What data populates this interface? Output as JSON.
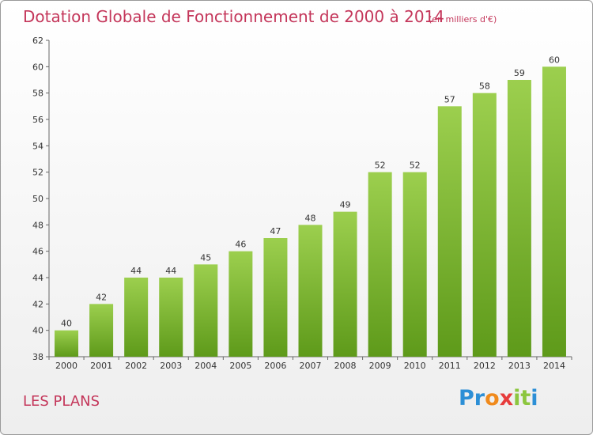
{
  "title": "Dotation Globale de Fonctionnement de 2000 à 2014",
  "subtitle": "(en milliers d'€)",
  "commune": "LES PLANS",
  "logo": {
    "letters": [
      "P",
      "r",
      "o",
      "x",
      "i",
      "t",
      "i"
    ],
    "colors": [
      "#2c8fd6",
      "#2c8fd6",
      "#f08a1c",
      "#e73c3c",
      "#8cc63f",
      "#8cc63f",
      "#2c8fd6"
    ]
  },
  "chart_data": {
    "type": "bar",
    "categories": [
      "2000",
      "2001",
      "2002",
      "2003",
      "2004",
      "2005",
      "2006",
      "2007",
      "2008",
      "2009",
      "2010",
      "2011",
      "2012",
      "2013",
      "2014"
    ],
    "values": [
      40,
      42,
      44,
      44,
      45,
      46,
      47,
      48,
      49,
      52,
      52,
      57,
      58,
      59,
      60
    ],
    "ylim": [
      38,
      62
    ],
    "yticks": [
      38,
      40,
      42,
      44,
      46,
      48,
      50,
      52,
      54,
      56,
      58,
      60,
      62
    ],
    "grid": false,
    "colors": {
      "bar_top": "#9ccf4e",
      "bar_bottom": "#5e9a1a"
    }
  }
}
